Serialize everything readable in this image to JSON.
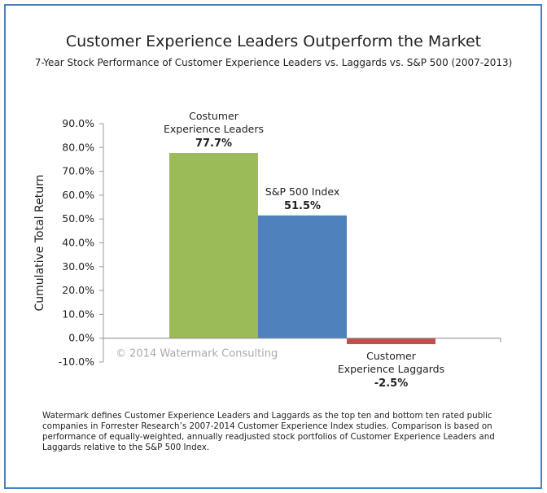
{
  "chart_data": {
    "type": "bar",
    "title": "Customer Experience Leaders Outperform the Market",
    "subtitle": "7-Year Stock Performance of Customer Experience Leaders vs. Laggards vs. S&P 500 (2007-2013)",
    "xlabel": "",
    "ylabel": "Cumulative Total Return",
    "ylim": [
      -10,
      90
    ],
    "yticks": [
      "90.0%",
      "80.0%",
      "70.0%",
      "60.0%",
      "50.0%",
      "40.0%",
      "30.0%",
      "20.0%",
      "10.0%",
      "0.0%",
      "-10.0%"
    ],
    "grid": false,
    "categories": [
      "Costumer Experience Leaders",
      "S&P 500 Index",
      "Customer Experience Laggards"
    ],
    "label_lines": [
      [
        "Costumer",
        "Experience Leaders"
      ],
      [
        "S&P 500 Index"
      ],
      [
        "Customer",
        "Experience Laggards"
      ]
    ],
    "values": [
      77.7,
      51.5,
      -2.5
    ],
    "data_labels": [
      "77.7%",
      "51.5%",
      "-2.5%"
    ],
    "colors": [
      "#9bbb59",
      "#4f81bd",
      "#c0504d"
    ],
    "watermark": "© 2014 Watermark Consulting"
  },
  "footnote": "Watermark defines Customer Experience Leaders and Laggards as the top ten and bottom ten rated public companies in Forrester Research’s 2007-2014 Customer Experience Index studies. Comparison is based on performance of equally-weighted, annually readjusted stock portfolios of Customer Experience Leaders and Laggards relative to the S&P 500 Index.",
  "frame_color": "#4a7fc1"
}
